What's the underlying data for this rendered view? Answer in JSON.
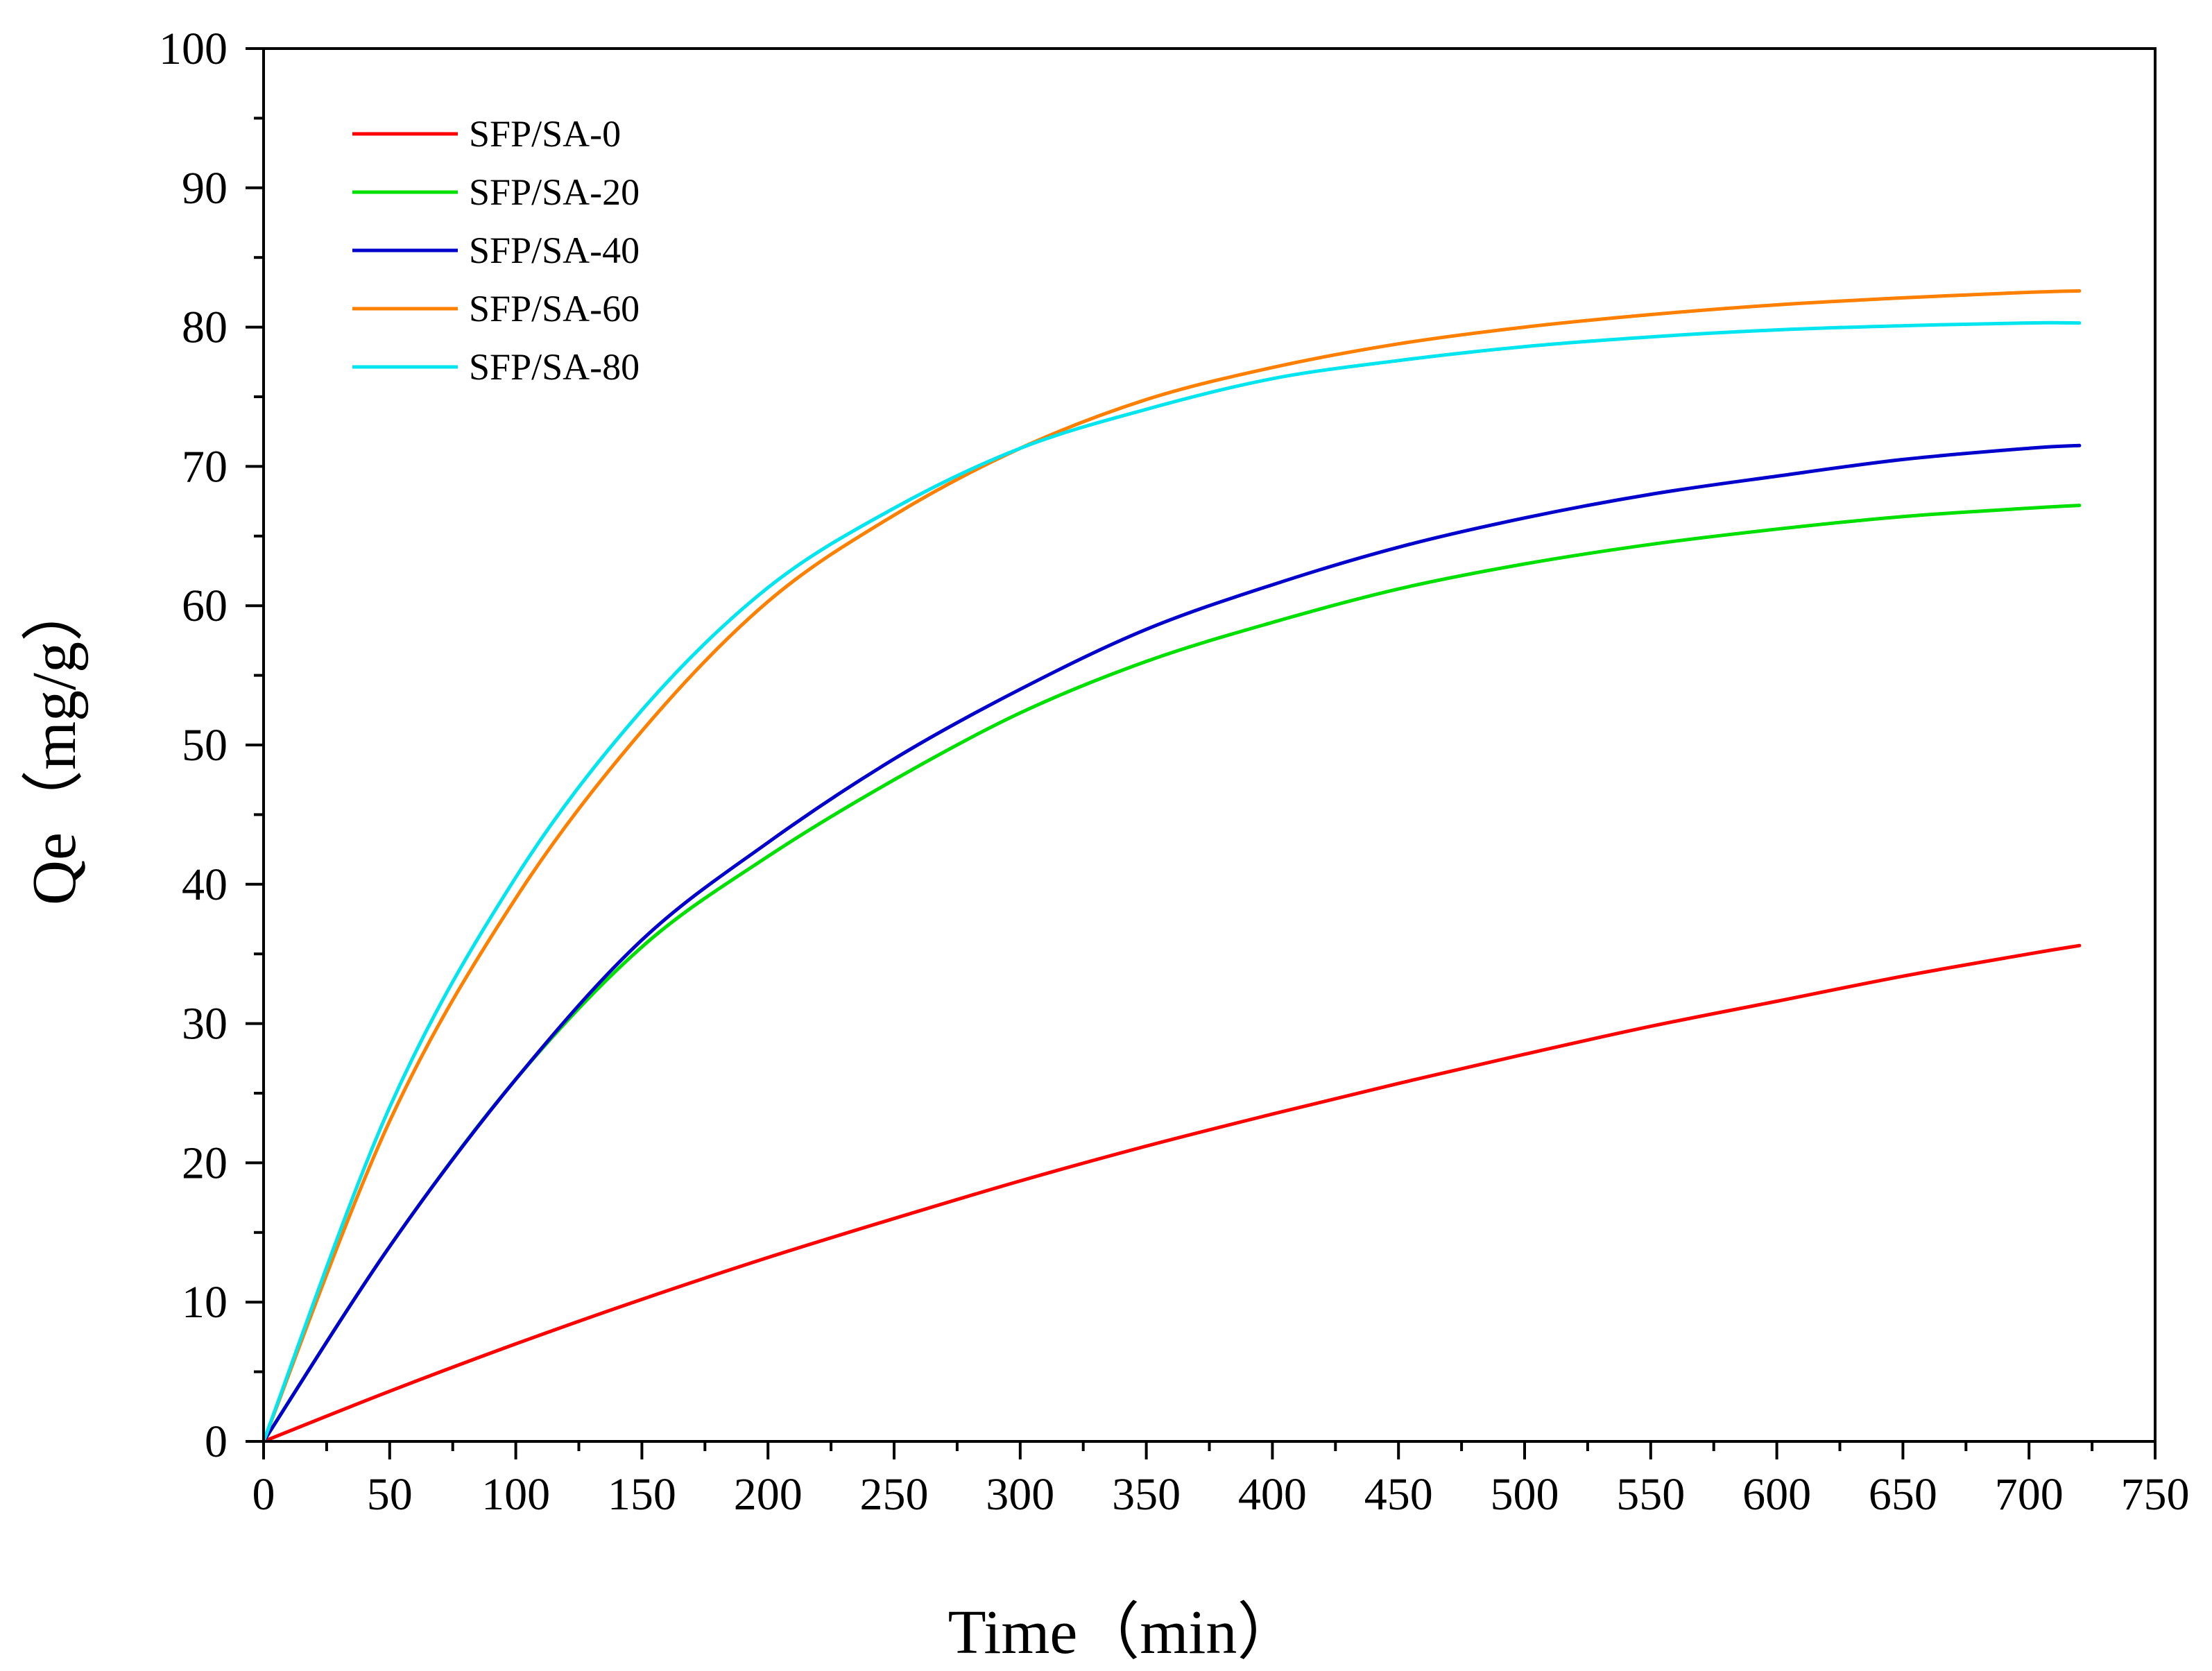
{
  "chart_data": {
    "type": "line",
    "title": "",
    "xlabel": "Time（min）",
    "ylabel": "Qe（mg/g）",
    "xlim": [
      0,
      750
    ],
    "ylim": [
      0,
      100
    ],
    "xticks": [
      0,
      50,
      100,
      150,
      200,
      250,
      300,
      350,
      400,
      450,
      500,
      550,
      600,
      650,
      700,
      750
    ],
    "yticks": [
      0,
      10,
      20,
      30,
      40,
      50,
      60,
      70,
      80,
      90,
      100
    ],
    "grid": false,
    "legend_position": "top-left",
    "x": [
      0,
      50,
      100,
      150,
      200,
      250,
      300,
      350,
      400,
      450,
      500,
      550,
      600,
      650,
      700,
      720
    ],
    "series": [
      {
        "name": "SFP/SA-0",
        "color": "#ff0000",
        "values": [
          0,
          3.6,
          7.0,
          10.2,
          13.2,
          16.0,
          18.7,
          21.2,
          23.5,
          25.7,
          27.8,
          29.8,
          31.6,
          33.4,
          35.0,
          35.6
        ]
      },
      {
        "name": "SFP/SA-20",
        "color": "#00e000",
        "values": [
          0,
          14.0,
          26.0,
          35.5,
          42.0,
          47.5,
          52.3,
          56.0,
          58.8,
          61.2,
          63.0,
          64.4,
          65.5,
          66.4,
          67.0,
          67.2
        ]
      },
      {
        "name": "SFP/SA-40",
        "color": "#0000cc",
        "values": [
          0,
          14.0,
          26.0,
          36.0,
          43.0,
          49.0,
          54.0,
          58.3,
          61.5,
          64.2,
          66.3,
          68.0,
          69.3,
          70.5,
          71.3,
          71.5
        ]
      },
      {
        "name": "SFP/SA-60",
        "color": "#ff8000",
        "values": [
          0,
          23.0,
          39.0,
          51.0,
          60.3,
          66.5,
          71.3,
          74.8,
          77.1,
          78.8,
          80.0,
          80.9,
          81.6,
          82.1,
          82.5,
          82.6
        ]
      },
      {
        "name": "SFP/SA-80",
        "color": "#00e5ee",
        "values": [
          0,
          24.0,
          40.5,
          52.5,
          61.3,
          67.0,
          71.3,
          74.1,
          76.3,
          77.6,
          78.6,
          79.3,
          79.8,
          80.1,
          80.3,
          80.3
        ]
      }
    ]
  }
}
